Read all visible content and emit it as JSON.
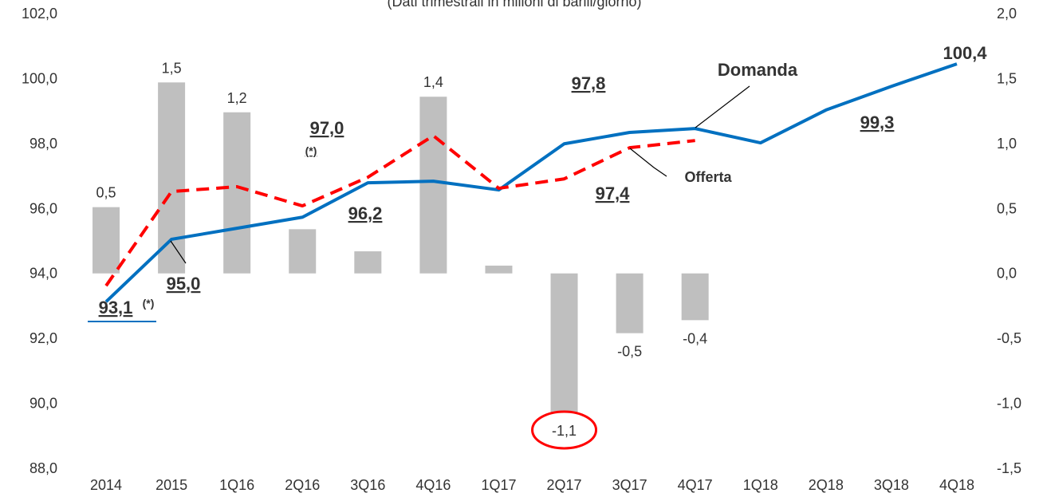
{
  "chart_data": {
    "type": "bar_line",
    "subtitle": "(Dati trimestrali in milioni di barili/giorno)",
    "categories": [
      "2014",
      "2015",
      "1Q16",
      "2Q16",
      "3Q16",
      "4Q16",
      "1Q17",
      "2Q17",
      "3Q17",
      "4Q17",
      "1Q18",
      "2Q18",
      "3Q18",
      "4Q18"
    ],
    "series": [
      {
        "name": null,
        "type": "bar",
        "axis": "y2",
        "color": "#bfbfbf",
        "values": [
          0.51,
          1.47,
          1.24,
          0.34,
          0.17,
          1.36,
          0.06,
          -1.07,
          -0.46,
          -0.36,
          null,
          null,
          null,
          null
        ],
        "value_labels": [
          "0,5",
          "1,5",
          "1,2",
          null,
          null,
          "1,4",
          null,
          "-1,1",
          "-0,5",
          "-0,4",
          null,
          null,
          null,
          null
        ]
      },
      {
        "name": "Domanda",
        "type": "line",
        "axis": "y",
        "color": "#0070c0",
        "dash": false,
        "values": [
          93.13,
          95.05,
          95.39,
          95.73,
          96.79,
          96.84,
          96.57,
          97.99,
          98.34,
          98.46,
          98.02,
          99.03,
          99.76,
          100.45
        ]
      },
      {
        "name": "Offerta",
        "type": "line",
        "axis": "y",
        "color": "#ff0000",
        "dash": true,
        "values": [
          93.62,
          96.52,
          96.67,
          96.08,
          96.96,
          98.24,
          96.62,
          96.91,
          97.87,
          98.09,
          null,
          null,
          null,
          null
        ]
      }
    ],
    "annotations": [
      {
        "text": "93,1",
        "color": "#0070c0"
      },
      {
        "text": "(*)",
        "color": "#0070c0"
      },
      {
        "text": "95,0",
        "color": "#0070c0"
      },
      {
        "text": "96,2",
        "color": "#0070c0"
      },
      {
        "text": "97,8",
        "color": "#0070c0"
      },
      {
        "text": "99,3",
        "color": "#0070c0"
      },
      {
        "text": "100,4",
        "color": "#0070c0"
      },
      {
        "text": "97,0",
        "color": "#ff0000"
      },
      {
        "text": "(*)",
        "color": "#ff0000"
      },
      {
        "text": "97,4",
        "color": "#ff0000"
      }
    ],
    "ylim": [
      88,
      102
    ],
    "yticks": [
      {
        "value": 88,
        "label": "88,0"
      },
      {
        "value": 90,
        "label": "90,0"
      },
      {
        "value": 92,
        "label": "92,0"
      },
      {
        "value": 94,
        "label": "94,0"
      },
      {
        "value": 96,
        "label": "96,0"
      },
      {
        "value": 98,
        "label": "98,0"
      },
      {
        "value": 100,
        "label": "100,0"
      },
      {
        "value": 102,
        "label": "102,0"
      }
    ],
    "y2lim": [
      -1.5,
      2
    ],
    "y2ticks": [
      {
        "value": -1.5,
        "label": "-1,5"
      },
      {
        "value": -1,
        "label": "-1,0"
      },
      {
        "value": -0.5,
        "label": "-0,5"
      },
      {
        "value": 0,
        "label": "0,0"
      },
      {
        "value": 0.5,
        "label": "0,5"
      },
      {
        "value": 1,
        "label": "1,0"
      },
      {
        "value": 1.5,
        "label": "1,5"
      },
      {
        "value": 2,
        "label": "2,0"
      }
    ],
    "grid": false
  }
}
